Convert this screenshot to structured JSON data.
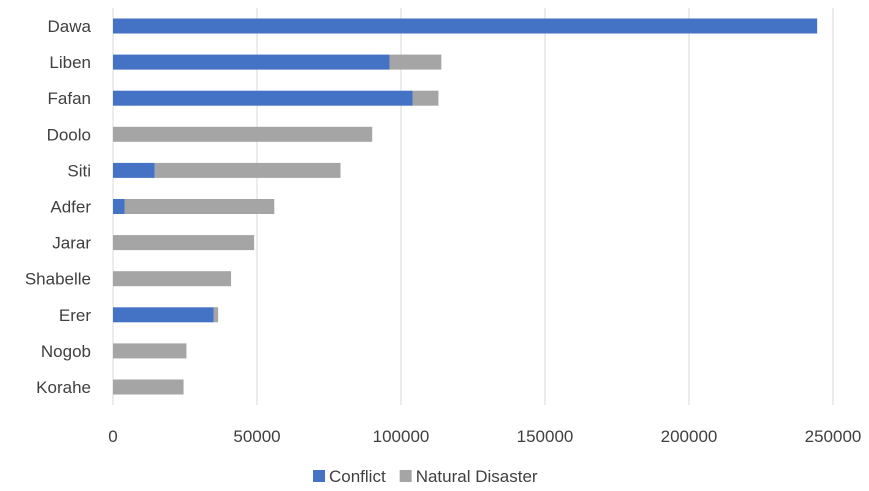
{
  "chart_data": {
    "type": "bar",
    "orientation": "horizontal",
    "stacked": true,
    "categories": [
      "Dawa",
      "Liben",
      "Fafan",
      "Doolo",
      "Siti",
      "Adfer",
      "Jarar",
      "Shabelle",
      "Erer",
      "Nogob",
      "Korahe"
    ],
    "series": [
      {
        "name": "Conflict",
        "color": "#4472C4",
        "values": [
          244500,
          96000,
          104000,
          0,
          14500,
          4000,
          0,
          0,
          35000,
          0,
          0
        ]
      },
      {
        "name": "Natural Disaster",
        "color": "#A5A5A5",
        "values": [
          0,
          18000,
          9000,
          90000,
          64500,
          52000,
          49000,
          41000,
          1500,
          25500,
          24500
        ]
      }
    ],
    "xlim": [
      0,
      250000
    ],
    "xticks": [
      0,
      50000,
      100000,
      150000,
      200000,
      250000
    ],
    "xtick_labels": [
      "0",
      "50000",
      "100000",
      "150000",
      "200000",
      "250000"
    ],
    "grid": "vertical",
    "legend": "bottom"
  }
}
